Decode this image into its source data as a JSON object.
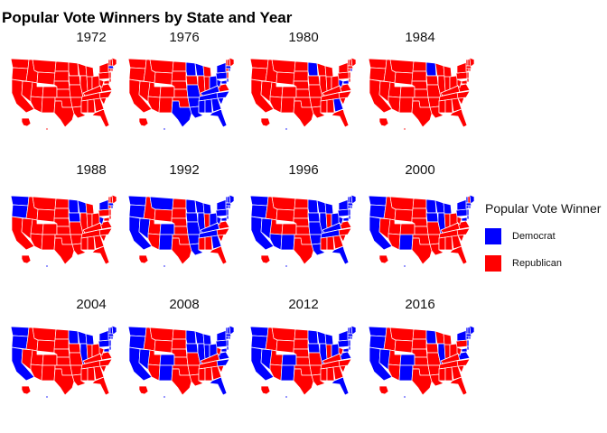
{
  "title": "Popular Vote Winners by State and Year",
  "legend": {
    "title": "Popular Vote Winner",
    "entries": [
      {
        "label": "Democrat",
        "color": "#0000ff"
      },
      {
        "label": "Republican",
        "color": "#ff0000"
      }
    ]
  },
  "colors": {
    "D": "#0000ff",
    "R": "#ff0000",
    "border": "#ffffff"
  },
  "panels": [
    {
      "year": "1972",
      "winners": {
        "MA": "D"
      }
    },
    {
      "year": "1976",
      "winners": {
        "MN": "D",
        "WI": "D",
        "TX": "D",
        "AR": "D",
        "LA": "D",
        "MO": "D",
        "TN": "D",
        "KY": "D",
        "OH": "D",
        "PA": "D",
        "NY": "D",
        "MS": "D",
        "AL": "D",
        "GA": "D",
        "FL": "D",
        "SC": "D",
        "NC": "D",
        "WV": "D",
        "MD": "D",
        "DE": "D",
        "RI": "D",
        "MA": "D",
        "HI": "D"
      }
    },
    {
      "year": "1980",
      "winners": {
        "MN": "D",
        "GA": "D",
        "RI": "D",
        "MD": "D",
        "WV": "D",
        "HI": "D"
      }
    },
    {
      "year": "1984",
      "winners": {
        "MN": "D"
      }
    },
    {
      "year": "1988",
      "winners": {
        "WA": "D",
        "OR": "D",
        "MN": "D",
        "WI": "D",
        "IA": "D",
        "NY": "D",
        "MA": "D",
        "RI": "D",
        "WV": "D",
        "HI": "D"
      }
    },
    {
      "year": "1992",
      "winners": {
        "WA": "D",
        "OR": "D",
        "CA": "D",
        "NV": "D",
        "MT": "D",
        "CO": "D",
        "NM": "D",
        "MN": "D",
        "WI": "D",
        "IA": "D",
        "MO": "D",
        "AR": "D",
        "LA": "D",
        "IL": "D",
        "MI": "D",
        "OH": "D",
        "KY": "D",
        "TN": "D",
        "GA": "D",
        "WV": "D",
        "PA": "D",
        "NY": "D",
        "VT": "D",
        "NH": "D",
        "ME": "D",
        "MA": "D",
        "CT": "D",
        "RI": "D",
        "NJ": "D",
        "DE": "D",
        "MD": "D",
        "HI": "D"
      }
    },
    {
      "year": "1996",
      "winners": {
        "WA": "D",
        "OR": "D",
        "CA": "D",
        "NV": "D",
        "AZ": "D",
        "NM": "D",
        "MN": "D",
        "WI": "D",
        "IA": "D",
        "MO": "D",
        "AR": "D",
        "LA": "D",
        "IL": "D",
        "MI": "D",
        "OH": "D",
        "KY": "D",
        "TN": "D",
        "FL": "D",
        "WV": "D",
        "PA": "D",
        "NY": "D",
        "VT": "D",
        "NH": "D",
        "ME": "D",
        "MA": "D",
        "CT": "D",
        "RI": "D",
        "NJ": "D",
        "DE": "D",
        "MD": "D",
        "HI": "D"
      }
    },
    {
      "year": "2000",
      "winners": {
        "WA": "D",
        "OR": "D",
        "CA": "D",
        "NM": "D",
        "MN": "D",
        "WI": "D",
        "IA": "D",
        "IL": "D",
        "MI": "D",
        "PA": "D",
        "NY": "D",
        "VT": "D",
        "ME": "D",
        "MA": "D",
        "CT": "D",
        "RI": "D",
        "NJ": "D",
        "DE": "D",
        "MD": "D",
        "HI": "D"
      }
    },
    {
      "year": "2004",
      "winners": {
        "WA": "D",
        "OR": "D",
        "CA": "D",
        "MN": "D",
        "WI": "D",
        "IL": "D",
        "MI": "D",
        "PA": "D",
        "NY": "D",
        "VT": "D",
        "NH": "D",
        "ME": "D",
        "MA": "D",
        "CT": "D",
        "RI": "D",
        "NJ": "D",
        "DE": "D",
        "MD": "D",
        "HI": "D"
      }
    },
    {
      "year": "2008",
      "winners": {
        "WA": "D",
        "OR": "D",
        "CA": "D",
        "NV": "D",
        "CO": "D",
        "NM": "D",
        "MN": "D",
        "WI": "D",
        "IA": "D",
        "IL": "D",
        "IN": "D",
        "MI": "D",
        "OH": "D",
        "PA": "D",
        "VA": "D",
        "NC": "D",
        "FL": "D",
        "NY": "D",
        "VT": "D",
        "NH": "D",
        "ME": "D",
        "MA": "D",
        "CT": "D",
        "RI": "D",
        "NJ": "D",
        "DE": "D",
        "MD": "D",
        "HI": "D"
      }
    },
    {
      "year": "2012",
      "winners": {
        "WA": "D",
        "OR": "D",
        "CA": "D",
        "NV": "D",
        "CO": "D",
        "NM": "D",
        "MN": "D",
        "WI": "D",
        "IA": "D",
        "IL": "D",
        "MI": "D",
        "OH": "D",
        "PA": "D",
        "VA": "D",
        "FL": "D",
        "NY": "D",
        "VT": "D",
        "NH": "D",
        "ME": "D",
        "MA": "D",
        "CT": "D",
        "RI": "D",
        "NJ": "D",
        "DE": "D",
        "MD": "D",
        "HI": "D"
      }
    },
    {
      "year": "2016",
      "winners": {
        "WA": "D",
        "OR": "D",
        "CA": "D",
        "NV": "D",
        "CO": "D",
        "NM": "D",
        "MN": "D",
        "IL": "D",
        "VA": "D",
        "NY": "D",
        "VT": "D",
        "NH": "D",
        "ME": "D",
        "MA": "D",
        "CT": "D",
        "RI": "D",
        "NJ": "D",
        "DE": "D",
        "MD": "D",
        "HI": "D"
      }
    }
  ]
}
